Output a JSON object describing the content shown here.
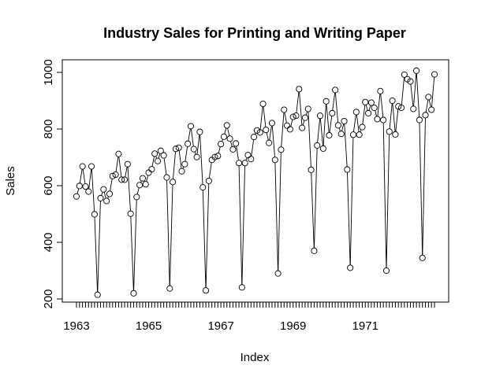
{
  "chart_data": {
    "type": "line",
    "title": "Industry Sales for Printing and Writing Paper",
    "xlabel": "Index",
    "ylabel": "Sales",
    "ylim": [
      200,
      1000
    ],
    "xlim": [
      1963.0,
      1972.9167
    ],
    "grid": false,
    "x_start": 1963,
    "frequency": 12,
    "x_ticks": [
      1963,
      1965,
      1967,
      1969,
      1971
    ],
    "x_tick_labels": [
      "1963",
      "1965",
      "1967",
      "1969",
      "1971"
    ],
    "y_ticks": [
      200,
      400,
      600,
      800,
      1000
    ],
    "y_tick_labels": [
      "200",
      "400",
      "600",
      "800",
      "1000"
    ],
    "series": [
      {
        "name": "",
        "marker": "open-circle",
        "values": [
          562,
          599,
          668,
          597,
          579,
          668,
          499,
          215,
          556,
          587,
          546,
          571,
          634,
          639,
          712,
          621,
          621,
          676,
          501,
          220,
          560,
          602,
          626,
          605,
          646,
          658,
          713,
          687,
          723,
          707,
          629,
          237,
          613,
          730,
          734,
          651,
          676,
          748,
          810,
          729,
          701,
          790,
          594,
          230,
          617,
          691,
          701,
          705,
          747,
          773,
          813,
          766,
          728,
          749,
          680,
          241,
          680,
          708,
          694,
          772,
          795,
          788,
          889,
          797,
          751,
          821,
          691,
          290,
          727,
          868,
          812,
          799,
          843,
          847,
          941,
          804,
          840,
          871,
          656,
          370,
          742,
          847,
          731,
          898,
          778,
          856,
          938,
          813,
          783,
          828,
          657,
          310,
          780,
          860,
          780,
          807,
          895,
          856,
          893,
          875,
          835,
          934,
          832,
          300,
          791,
          900,
          781,
          880,
          875,
          992,
          976,
          968,
          871,
          1006,
          832,
          345,
          849,
          913,
          868,
          993
        ]
      }
    ]
  }
}
